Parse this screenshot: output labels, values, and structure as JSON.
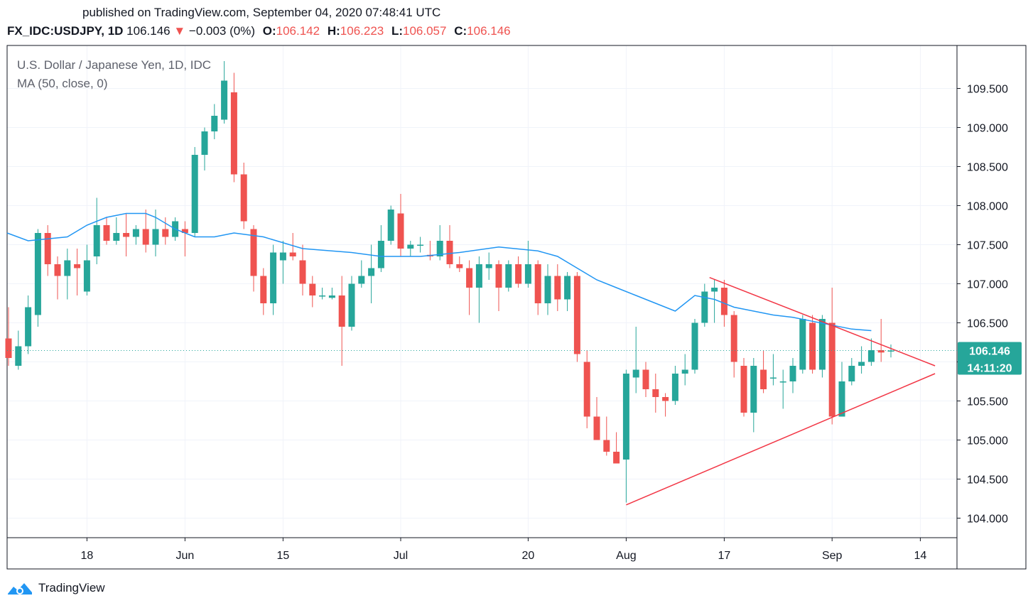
{
  "header": {
    "published": "published on TradingView.com, September 04, 2020 07:48:41 UTC",
    "symbol": "FX_IDC:USDJPY, 1D",
    "last": "106.146",
    "change": "−0.003 (0%)",
    "open_label": "O:",
    "open": "106.142",
    "high_label": "H:",
    "high": "106.223",
    "low_label": "L:",
    "low": "106.057",
    "close_label": "C:",
    "close": "106.146",
    "down_arrow_color": "#ef5350"
  },
  "legend": {
    "title": "U.S. Dollar / Japanese Yen, 1D, IDC",
    "indicator": "MA (50, close, 0)"
  },
  "footer": {
    "brand": "TradingView"
  },
  "colors": {
    "up": "#26a69a",
    "down": "#ef5350",
    "ma": "#2196f3",
    "trendline": "#f23645",
    "axis_text": "#131722",
    "grid": "#f0f3fa"
  },
  "chart_data": {
    "type": "candlestick",
    "title": "U.S. Dollar / Japanese Yen, 1D, IDC",
    "ylim": [
      103.75,
      110.05
    ],
    "y_ticks": [
      104.0,
      104.5,
      105.0,
      105.5,
      106.0,
      106.5,
      107.0,
      107.5,
      108.0,
      108.5,
      109.0,
      109.5
    ],
    "y_tick_labels": [
      "104.000",
      "104.500",
      "105.000",
      "105.500",
      "106.000",
      "106.500",
      "107.000",
      "107.500",
      "108.000",
      "108.500",
      "109.000",
      "109.500"
    ],
    "x_ticks": [
      {
        "index": 8,
        "label": "18"
      },
      {
        "index": 18,
        "label": "Jun"
      },
      {
        "index": 28,
        "label": "15"
      },
      {
        "index": 40,
        "label": "Jul"
      },
      {
        "index": 53,
        "label": "20"
      },
      {
        "index": 63,
        "label": "Aug"
      },
      {
        "index": 73,
        "label": "17"
      },
      {
        "index": 84,
        "label": "Sep"
      },
      {
        "index": 93,
        "label": "14"
      }
    ],
    "last_price": 106.146,
    "last_price_label": "106.146",
    "countdown_label": "14:11:20",
    "candles": [
      {
        "o": 106.3,
        "h": 106.7,
        "l": 105.95,
        "c": 106.05
      },
      {
        "o": 105.95,
        "h": 106.4,
        "l": 105.9,
        "c": 106.2
      },
      {
        "o": 106.2,
        "h": 106.85,
        "l": 106.1,
        "c": 106.7
      },
      {
        "o": 106.6,
        "h": 107.7,
        "l": 106.45,
        "c": 107.65
      },
      {
        "o": 107.65,
        "h": 107.75,
        "l": 107.1,
        "c": 107.25
      },
      {
        "o": 107.25,
        "h": 107.35,
        "l": 106.8,
        "c": 107.1
      },
      {
        "o": 107.1,
        "h": 107.45,
        "l": 106.8,
        "c": 107.3
      },
      {
        "o": 107.25,
        "h": 107.45,
        "l": 106.85,
        "c": 107.2
      },
      {
        "o": 106.9,
        "h": 107.5,
        "l": 106.85,
        "c": 107.3
      },
      {
        "o": 107.35,
        "h": 108.1,
        "l": 107.25,
        "c": 107.75
      },
      {
        "o": 107.75,
        "h": 107.85,
        "l": 107.5,
        "c": 107.55
      },
      {
        "o": 107.55,
        "h": 107.85,
        "l": 107.5,
        "c": 107.65
      },
      {
        "o": 107.65,
        "h": 107.9,
        "l": 107.35,
        "c": 107.6
      },
      {
        "o": 107.6,
        "h": 107.75,
        "l": 107.5,
        "c": 107.7
      },
      {
        "o": 107.7,
        "h": 107.95,
        "l": 107.4,
        "c": 107.5
      },
      {
        "o": 107.5,
        "h": 107.95,
        "l": 107.35,
        "c": 107.7
      },
      {
        "o": 107.7,
        "h": 107.85,
        "l": 107.5,
        "c": 107.6
      },
      {
        "o": 107.6,
        "h": 107.85,
        "l": 107.55,
        "c": 107.8
      },
      {
        "o": 107.7,
        "h": 107.8,
        "l": 107.35,
        "c": 107.65
      },
      {
        "o": 107.65,
        "h": 108.75,
        "l": 107.6,
        "c": 108.65
      },
      {
        "o": 108.65,
        "h": 109.0,
        "l": 108.45,
        "c": 108.95
      },
      {
        "o": 108.95,
        "h": 109.3,
        "l": 108.85,
        "c": 109.15
      },
      {
        "o": 109.1,
        "h": 109.85,
        "l": 109.05,
        "c": 109.6
      },
      {
        "o": 109.45,
        "h": 109.7,
        "l": 108.3,
        "c": 108.4
      },
      {
        "o": 108.4,
        "h": 108.55,
        "l": 107.7,
        "c": 107.8
      },
      {
        "o": 107.7,
        "h": 107.75,
        "l": 106.9,
        "c": 107.1
      },
      {
        "o": 107.1,
        "h": 107.2,
        "l": 106.6,
        "c": 106.75
      },
      {
        "o": 106.75,
        "h": 107.5,
        "l": 106.6,
        "c": 107.4
      },
      {
        "o": 107.3,
        "h": 107.55,
        "l": 107.0,
        "c": 107.4
      },
      {
        "o": 107.4,
        "h": 107.65,
        "l": 107.3,
        "c": 107.35
      },
      {
        "o": 107.3,
        "h": 107.5,
        "l": 106.85,
        "c": 107.0
      },
      {
        "o": 107.0,
        "h": 107.1,
        "l": 106.7,
        "c": 106.85
      },
      {
        "o": 106.85,
        "h": 106.95,
        "l": 106.8,
        "c": 106.85
      },
      {
        "o": 106.82,
        "h": 106.95,
        "l": 106.8,
        "c": 106.85
      },
      {
        "o": 106.85,
        "h": 107.1,
        "l": 105.95,
        "c": 106.45
      },
      {
        "o": 106.45,
        "h": 107.1,
        "l": 106.4,
        "c": 107.0
      },
      {
        "o": 107.0,
        "h": 107.3,
        "l": 106.95,
        "c": 107.1
      },
      {
        "o": 107.1,
        "h": 107.5,
        "l": 106.75,
        "c": 107.2
      },
      {
        "o": 107.2,
        "h": 107.75,
        "l": 107.15,
        "c": 107.55
      },
      {
        "o": 107.55,
        "h": 108.0,
        "l": 107.5,
        "c": 107.95
      },
      {
        "o": 107.9,
        "h": 108.15,
        "l": 107.35,
        "c": 107.45
      },
      {
        "o": 107.45,
        "h": 107.55,
        "l": 107.35,
        "c": 107.5
      },
      {
        "o": 107.5,
        "h": 107.6,
        "l": 107.4,
        "c": 107.5
      },
      {
        "o": 107.37,
        "h": 107.55,
        "l": 107.3,
        "c": 107.35
      },
      {
        "o": 107.35,
        "h": 107.75,
        "l": 107.3,
        "c": 107.55
      },
      {
        "o": 107.55,
        "h": 107.75,
        "l": 107.2,
        "c": 107.25
      },
      {
        "o": 107.25,
        "h": 107.35,
        "l": 107.15,
        "c": 107.2
      },
      {
        "o": 107.2,
        "h": 107.3,
        "l": 106.6,
        "c": 106.95
      },
      {
        "o": 106.95,
        "h": 107.35,
        "l": 106.5,
        "c": 107.25
      },
      {
        "o": 107.2,
        "h": 107.4,
        "l": 107.05,
        "c": 107.25
      },
      {
        "o": 107.25,
        "h": 107.3,
        "l": 106.65,
        "c": 106.95
      },
      {
        "o": 106.95,
        "h": 107.3,
        "l": 106.9,
        "c": 107.25
      },
      {
        "o": 107.25,
        "h": 107.35,
        "l": 106.95,
        "c": 107.0
      },
      {
        "o": 107.0,
        "h": 107.55,
        "l": 106.95,
        "c": 107.25
      },
      {
        "o": 107.25,
        "h": 107.3,
        "l": 106.6,
        "c": 106.75
      },
      {
        "o": 106.75,
        "h": 107.25,
        "l": 106.6,
        "c": 107.1
      },
      {
        "o": 107.1,
        "h": 107.25,
        "l": 106.65,
        "c": 106.8
      },
      {
        "o": 106.8,
        "h": 107.15,
        "l": 106.65,
        "c": 107.1
      },
      {
        "o": 107.1,
        "h": 107.15,
        "l": 106.0,
        "c": 106.1
      },
      {
        "o": 106.0,
        "h": 106.15,
        "l": 105.15,
        "c": 105.3
      },
      {
        "o": 105.3,
        "h": 105.55,
        "l": 105.0,
        "c": 105.0
      },
      {
        "o": 105.0,
        "h": 105.3,
        "l": 104.8,
        "c": 104.85
      },
      {
        "o": 104.85,
        "h": 105.1,
        "l": 104.7,
        "c": 104.7
      },
      {
        "o": 104.75,
        "h": 105.9,
        "l": 104.2,
        "c": 105.85
      },
      {
        "o": 105.8,
        "h": 106.45,
        "l": 105.6,
        "c": 105.9
      },
      {
        "o": 105.9,
        "h": 106.0,
        "l": 105.55,
        "c": 105.65
      },
      {
        "o": 105.65,
        "h": 105.85,
        "l": 105.35,
        "c": 105.55
      },
      {
        "o": 105.55,
        "h": 105.6,
        "l": 105.3,
        "c": 105.5
      },
      {
        "o": 105.5,
        "h": 105.95,
        "l": 105.45,
        "c": 105.85
      },
      {
        "o": 105.85,
        "h": 106.1,
        "l": 105.7,
        "c": 105.9
      },
      {
        "o": 105.9,
        "h": 106.55,
        "l": 105.85,
        "c": 106.5
      },
      {
        "o": 106.5,
        "h": 107.0,
        "l": 106.45,
        "c": 106.9
      },
      {
        "o": 106.9,
        "h": 107.05,
        "l": 106.5,
        "c": 106.95
      },
      {
        "o": 106.95,
        "h": 107.05,
        "l": 106.45,
        "c": 106.6
      },
      {
        "o": 106.6,
        "h": 106.65,
        "l": 105.8,
        "c": 106.0
      },
      {
        "o": 105.95,
        "h": 106.05,
        "l": 105.3,
        "c": 105.35
      },
      {
        "o": 105.35,
        "h": 106.05,
        "l": 105.1,
        "c": 105.95
      },
      {
        "o": 105.9,
        "h": 106.15,
        "l": 105.6,
        "c": 105.65
      },
      {
        "o": 105.8,
        "h": 106.1,
        "l": 105.7,
        "c": 105.8
      },
      {
        "o": 105.75,
        "h": 105.9,
        "l": 105.4,
        "c": 105.75
      },
      {
        "o": 105.75,
        "h": 106.05,
        "l": 105.6,
        "c": 105.95
      },
      {
        "o": 105.9,
        "h": 106.6,
        "l": 105.85,
        "c": 106.55
      },
      {
        "o": 106.5,
        "h": 106.6,
        "l": 105.85,
        "c": 105.9
      },
      {
        "o": 105.9,
        "h": 106.6,
        "l": 105.8,
        "c": 106.55
      },
      {
        "o": 106.5,
        "h": 106.95,
        "l": 105.2,
        "c": 105.3
      },
      {
        "o": 105.3,
        "h": 106.0,
        "l": 105.3,
        "c": 105.75
      },
      {
        "o": 105.75,
        "h": 106.05,
        "l": 105.7,
        "c": 105.95
      },
      {
        "o": 105.95,
        "h": 106.2,
        "l": 105.85,
        "c": 106.0
      },
      {
        "o": 106.0,
        "h": 106.3,
        "l": 105.95,
        "c": 106.15
      },
      {
        "o": 106.15,
        "h": 106.55,
        "l": 106.0,
        "c": 106.12
      },
      {
        "o": 106.142,
        "h": 106.223,
        "l": 106.057,
        "c": 106.146
      }
    ],
    "ma_series": {
      "name": "MA (50, close, 0)",
      "points": [
        {
          "index": -1,
          "value": 107.65
        },
        {
          "index": 2,
          "value": 107.55
        },
        {
          "index": 6,
          "value": 107.6
        },
        {
          "index": 8,
          "value": 107.75
        },
        {
          "index": 10,
          "value": 107.85
        },
        {
          "index": 12,
          "value": 107.9
        },
        {
          "index": 14,
          "value": 107.9
        },
        {
          "index": 15,
          "value": 107.85
        },
        {
          "index": 17,
          "value": 107.7
        },
        {
          "index": 19,
          "value": 107.6
        },
        {
          "index": 21,
          "value": 107.6
        },
        {
          "index": 23,
          "value": 107.65
        },
        {
          "index": 26,
          "value": 107.6
        },
        {
          "index": 30,
          "value": 107.45
        },
        {
          "index": 35,
          "value": 107.4
        },
        {
          "index": 38,
          "value": 107.35
        },
        {
          "index": 42,
          "value": 107.35
        },
        {
          "index": 46,
          "value": 107.4
        },
        {
          "index": 50,
          "value": 107.47
        },
        {
          "index": 54,
          "value": 107.42
        },
        {
          "index": 56,
          "value": 107.35
        },
        {
          "index": 58,
          "value": 107.2
        },
        {
          "index": 60,
          "value": 107.05
        },
        {
          "index": 62,
          "value": 106.95
        },
        {
          "index": 64,
          "value": 106.85
        },
        {
          "index": 66,
          "value": 106.75
        },
        {
          "index": 68,
          "value": 106.65
        },
        {
          "index": 70,
          "value": 106.85
        },
        {
          "index": 72,
          "value": 106.8
        },
        {
          "index": 74,
          "value": 106.7
        },
        {
          "index": 76,
          "value": 106.65
        },
        {
          "index": 78,
          "value": 106.6
        },
        {
          "index": 80,
          "value": 106.57
        },
        {
          "index": 82,
          "value": 106.52
        },
        {
          "index": 84,
          "value": 106.47
        },
        {
          "index": 86,
          "value": 106.42
        },
        {
          "index": 88,
          "value": 106.4
        }
      ]
    },
    "trendlines": [
      {
        "from": {
          "index": 63,
          "value": 104.17
        },
        "to": {
          "index": 94.5,
          "value": 105.85
        }
      },
      {
        "from": {
          "index": 71.5,
          "value": 107.08
        },
        "to": {
          "index": 94.5,
          "value": 105.95
        }
      }
    ]
  }
}
